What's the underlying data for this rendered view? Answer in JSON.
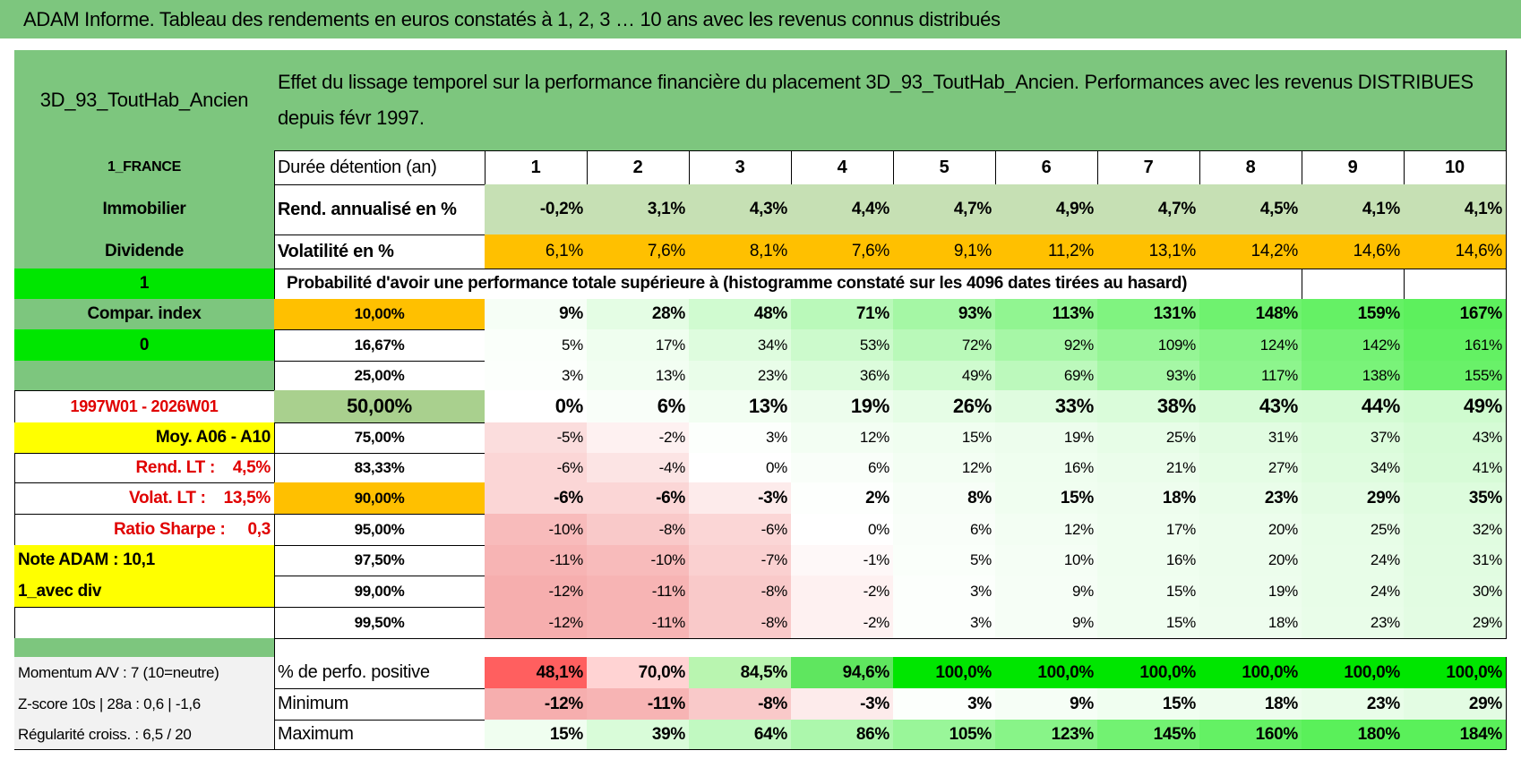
{
  "header": {
    "title": "ADAM Informe. Tableau des rendements en euros constatés à 1, 2, 3 … 10 ans avec les revenus connus distribués"
  },
  "table": {
    "name": "3D_93_ToutHab_Ancien",
    "description": "Effet du lissage temporel sur la performance financière du placement 3D_93_ToutHab_Ancien. Performances avec les revenus DISTRIBUES depuis févr 1997.",
    "rows": [
      [
        "1_FRANCE",
        "Durée détention (an)",
        "1",
        "2",
        "3",
        "4",
        "5",
        "6",
        "7",
        "8",
        "9",
        "10"
      ],
      [
        "Immobilier",
        "Rend. annualisé en %",
        "-0,2%",
        "3,1%",
        "4,3%",
        "4,4%",
        "4,7%",
        "4,9%",
        "4,7%",
        "4,5%",
        "4,1%",
        "4,1%"
      ],
      [
        "Dividende",
        "Volatilité en %",
        "6,1%",
        "7,6%",
        "8,1%",
        "7,6%",
        "9,1%",
        "11,2%",
        "13,1%",
        "14,2%",
        "14,6%",
        "14,6%"
      ],
      [
        "1",
        "Probabilité d'avoir une performance totale supérieure à (histogramme constaté sur les 4096 dates tirées au hasard)"
      ],
      [
        "Compar. index",
        "10,00%",
        "9%",
        "28%",
        "48%",
        "71%",
        "93%",
        "113%",
        "131%",
        "148%",
        "159%",
        "167%"
      ],
      [
        "0",
        "16,67%",
        "5%",
        "17%",
        "34%",
        "53%",
        "72%",
        "92%",
        "109%",
        "124%",
        "142%",
        "161%"
      ],
      [
        null,
        "25,00%",
        "3%",
        "13%",
        "23%",
        "36%",
        "49%",
        "69%",
        "93%",
        "117%",
        "138%",
        "155%"
      ],
      [
        "1997W01 - 2026W01",
        "50,00%",
        "0%",
        "6%",
        "13%",
        "19%",
        "26%",
        "33%",
        "38%",
        "43%",
        "44%",
        "49%"
      ],
      [
        "Moy. A06 - A10",
        "75,00%",
        "-5%",
        "-2%",
        "3%",
        "12%",
        "15%",
        "19%",
        "25%",
        "31%",
        "37%",
        "43%"
      ],
      [
        "Rend. LT :    4,5%",
        "83,33%",
        "-6%",
        "-4%",
        "0%",
        "6%",
        "12%",
        "16%",
        "21%",
        "27%",
        "34%",
        "41%"
      ],
      [
        "Volat. LT :    13,5%",
        "90,00%",
        "-6%",
        "-6%",
        "-3%",
        "2%",
        "8%",
        "15%",
        "18%",
        "23%",
        "29%",
        "35%"
      ],
      [
        "Ratio Sharpe :     0,3",
        "95,00%",
        "-10%",
        "-8%",
        "-6%",
        "0%",
        "6%",
        "12%",
        "17%",
        "20%",
        "25%",
        "32%"
      ],
      [
        "Note ADAM : 10,1",
        "97,50%",
        "-11%",
        "-10%",
        "-7%",
        "-1%",
        "5%",
        "10%",
        "16%",
        "20%",
        "24%",
        "31%"
      ],
      [
        "1_avec div",
        "99,00%",
        "-12%",
        "-11%",
        "-8%",
        "-2%",
        "3%",
        "9%",
        "15%",
        "19%",
        "24%",
        "30%"
      ],
      [
        null,
        "99,50%",
        "-12%",
        "-11%",
        "-8%",
        "-2%",
        "3%",
        "9%",
        "15%",
        "18%",
        "23%",
        "29%"
      ],
      [
        "Momentum A/V : 7 (10=neutre)",
        "% de perfo. positive",
        "48,1%",
        "70,0%",
        "84,5%",
        "94,6%",
        "100,0%",
        "100,0%",
        "100,0%",
        "100,0%",
        "100,0%",
        "100,0%"
      ],
      [
        "Z-score 10s | 28a : 0,6 | -1,6",
        "Minimum",
        "-12%",
        "-11%",
        "-8%",
        "-3%",
        "3%",
        "9%",
        "15%",
        "18%",
        "23%",
        "29%"
      ],
      [
        "Régularité croiss. : 6,5 / 20",
        "Maximum",
        "15%",
        "39%",
        "64%",
        "86%",
        "105%",
        "123%",
        "145%",
        "160%",
        "180%",
        "184%"
      ]
    ]
  }
}
